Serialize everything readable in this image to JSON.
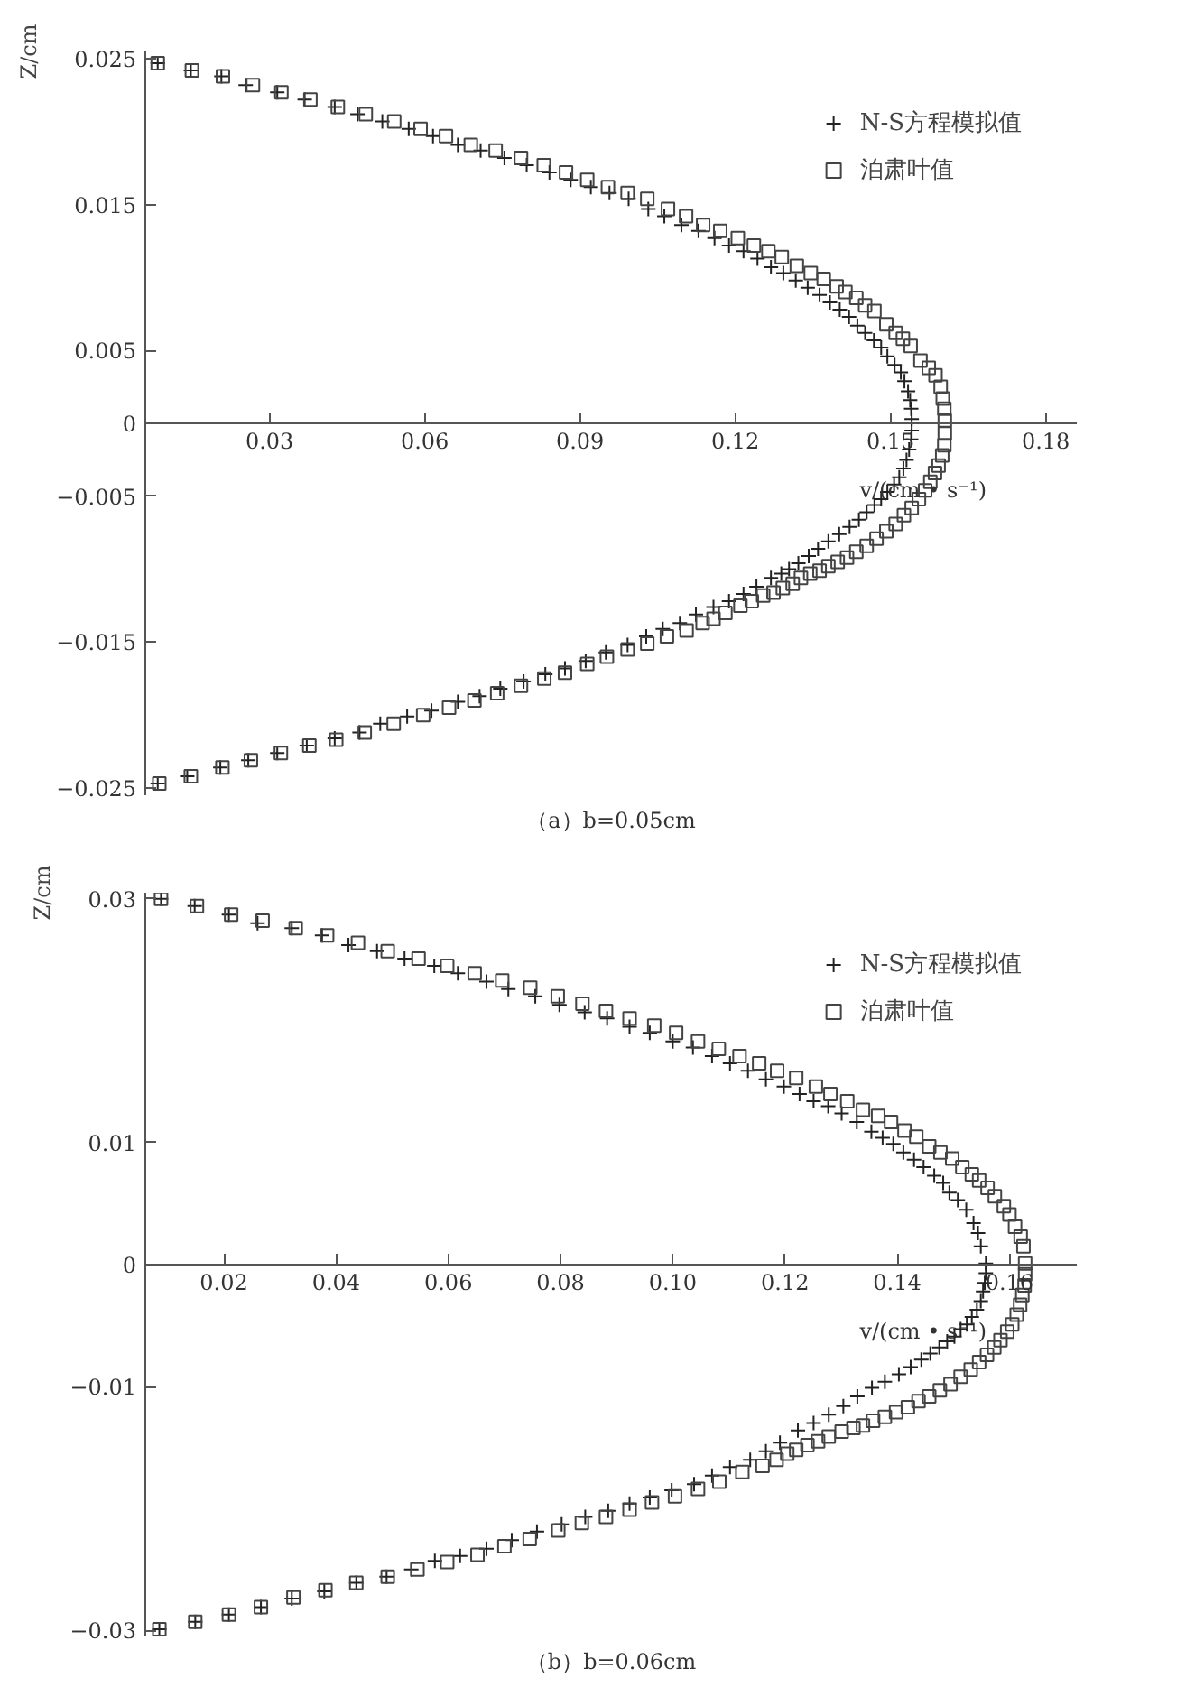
{
  "chart_data": [
    {
      "type": "scatter",
      "title": "（a）b=0.05cm",
      "xlabel": "v/(cm • s⁻¹)",
      "ylabel": "Z/cm",
      "xlim": [
        0.006,
        0.186
      ],
      "ylim": [
        -0.0255,
        0.0255
      ],
      "xticks": [
        0.03,
        0.06,
        0.09,
        0.12,
        0.15,
        0.18
      ],
      "yticks": [
        0.025,
        0.015,
        0.005,
        0,
        {
          "value": -0.005,
          "label": "−0.005"
        },
        {
          "value": -0.015,
          "label": "−0.015"
        },
        {
          "value": -0.025,
          "label": "−0.025"
        }
      ],
      "grid": false,
      "legend": "top right",
      "series": [
        {
          "name": "N-S方程模拟值",
          "color": "#222222",
          "marker": "cross",
          "x": [
            0.0084,
            0.0148,
            0.0207,
            0.0254,
            0.0315,
            0.0368,
            0.0426,
            0.047,
            0.0518,
            0.0569,
            0.0616,
            0.0664,
            0.0708,
            0.0754,
            0.0797,
            0.0841,
            0.0882,
            0.0921,
            0.0957,
            0.0994,
            0.1032,
            0.1063,
            0.1096,
            0.1129,
            0.116,
            0.1188,
            0.1216,
            0.1243,
            0.1269,
            0.1293,
            0.1317,
            0.134,
            0.1363,
            0.1383,
            0.1402,
            0.142,
            0.1436,
            0.1451,
            0.1468,
            0.1482,
            0.1494,
            0.1508,
            0.152,
            0.1527,
            0.1534,
            0.1538,
            0.154,
            0.1541,
            0.1541,
            0.154,
            0.1536,
            0.1531,
            0.1525,
            0.1517,
            0.1507,
            0.1494,
            0.1482,
            0.1469,
            0.1454,
            0.1439,
            0.1421,
            0.1401,
            0.138,
            0.136,
            0.1342,
            0.1322,
            0.1304,
            0.1289,
            0.1269,
            0.1241,
            0.1216,
            0.1188,
            0.1158,
            0.1124,
            0.1093,
            0.106,
            0.1028,
            0.0992,
            0.095,
            0.0911,
            0.0871,
            0.0833,
            0.0791,
            0.0746,
            0.0706,
            0.0664,
            0.0613,
            0.0566,
            0.0514,
            0.0474,
            0.0426,
            0.0372,
            0.0315,
            0.0259,
            0.0205,
            0.0141,
            0.0084
          ],
          "values": [
            0.0247,
            0.0242,
            0.0238,
            0.0232,
            0.0227,
            0.0222,
            0.0217,
            0.0212,
            0.0207,
            0.0202,
            0.0197,
            0.0191,
            0.0187,
            0.0182,
            0.0177,
            0.0172,
            0.0167,
            0.0162,
            0.0158,
            0.0154,
            0.0147,
            0.0142,
            0.0136,
            0.0132,
            0.0127,
            0.0122,
            0.0118,
            0.0113,
            0.0107,
            0.0103,
            0.0098,
            0.0093,
            0.0088,
            0.0083,
            0.0078,
            0.0073,
            0.0067,
            0.0062,
            0.0057,
            0.0052,
            0.0046,
            0.004,
            0.0035,
            0.0029,
            0.0022,
            0.0016,
            0.001,
            0.0003,
            -0.0005,
            -0.0011,
            -0.0018,
            -0.0025,
            -0.0031,
            -0.0037,
            -0.0042,
            -0.0047,
            -0.0052,
            -0.0056,
            -0.0061,
            -0.0066,
            -0.0071,
            -0.0076,
            -0.0081,
            -0.0086,
            -0.0091,
            -0.0096,
            -0.01,
            -0.0103,
            -0.0106,
            -0.0112,
            -0.0117,
            -0.0122,
            -0.0126,
            -0.0131,
            -0.0137,
            -0.0141,
            -0.0146,
            -0.0152,
            -0.0157,
            -0.0163,
            -0.0168,
            -0.0172,
            -0.0177,
            -0.0182,
            -0.0187,
            -0.0191,
            -0.0197,
            -0.0201,
            -0.0206,
            -0.0212,
            -0.0216,
            -0.0221,
            -0.0226,
            -0.0231,
            -0.0236,
            -0.0242,
            -0.0247
          ]
        },
        {
          "name": "泊肃叶值",
          "color": "#444444",
          "marker": "square",
          "x": [
            0.0084,
            0.015,
            0.021,
            0.0268,
            0.0323,
            0.0379,
            0.0432,
            0.0486,
            0.0541,
            0.0592,
            0.0641,
            0.0689,
            0.0737,
            0.0786,
            0.083,
            0.0873,
            0.0914,
            0.0954,
            0.0992,
            0.103,
            0.107,
            0.1105,
            0.1138,
            0.1171,
            0.1205,
            0.1236,
            0.1264,
            0.129,
            0.1319,
            0.1346,
            0.1371,
            0.1396,
            0.1413,
            0.1434,
            0.1451,
            0.1469,
            0.1492,
            0.151,
            0.1524,
            0.1539,
            0.1558,
            0.1574,
            0.1587,
            0.1597,
            0.1601,
            0.1604,
            0.1605,
            0.1605,
            0.1604,
            0.16,
            0.1593,
            0.1586,
            0.1577,
            0.1567,
            0.1555,
            0.1541,
            0.1526,
            0.151,
            0.1492,
            0.1473,
            0.1454,
            0.1434,
            0.1416,
            0.1398,
            0.138,
            0.1363,
            0.1345,
            0.1327,
            0.1311,
            0.1292,
            0.1274,
            0.1254,
            0.1232,
            0.121,
            0.1181,
            0.1158,
            0.1137,
            0.1106,
            0.1068,
            0.103,
            0.0992,
            0.0952,
            0.0914,
            0.0871,
            0.0831,
            0.0786,
            0.074,
            0.0696,
            0.0647,
            0.0597,
            0.054,
            0.0484,
            0.0429,
            0.0377,
            0.0322,
            0.0264,
            0.0209,
            0.0148,
            0.0087
          ],
          "values": [
            0.0247,
            0.0242,
            0.0238,
            0.0232,
            0.0227,
            0.0222,
            0.0217,
            0.0212,
            0.0207,
            0.0202,
            0.0197,
            0.0191,
            0.0187,
            0.0182,
            0.0177,
            0.0172,
            0.0167,
            0.0162,
            0.0158,
            0.0154,
            0.0147,
            0.0142,
            0.0136,
            0.0132,
            0.0127,
            0.0122,
            0.0118,
            0.0114,
            0.0108,
            0.0103,
            0.0099,
            0.0094,
            0.009,
            0.0086,
            0.0081,
            0.0077,
            0.0068,
            0.0062,
            0.0058,
            0.0053,
            0.0043,
            0.0038,
            0.0033,
            0.0025,
            0.0017,
            0.001,
            0.0002,
            -0.0007,
            -0.0015,
            -0.0022,
            -0.0029,
            -0.0034,
            -0.004,
            -0.0046,
            -0.0052,
            -0.0058,
            -0.0063,
            -0.0069,
            -0.0074,
            -0.0079,
            -0.0084,
            -0.0088,
            -0.0092,
            -0.0095,
            -0.0098,
            -0.0101,
            -0.0103,
            -0.0106,
            -0.011,
            -0.0113,
            -0.0116,
            -0.0118,
            -0.0122,
            -0.0125,
            -0.013,
            -0.0134,
            -0.0137,
            -0.0142,
            -0.0146,
            -0.0151,
            -0.0155,
            -0.016,
            -0.0165,
            -0.0171,
            -0.0175,
            -0.018,
            -0.0185,
            -0.019,
            -0.0195,
            -0.02,
            -0.0206,
            -0.0212,
            -0.0217,
            -0.0221,
            -0.0226,
            -0.0231,
            -0.0236,
            -0.0242,
            -0.0247
          ]
        }
      ]
    },
    {
      "type": "scatter",
      "title": "（b）b=0.06cm",
      "xlabel": "v/(cm • s⁻¹)",
      "ylabel": "Z/cm",
      "xlim": [
        0.006,
        0.172
      ],
      "ylim": [
        -0.0305,
        0.0305
      ],
      "xticks": [
        0.02,
        0.04,
        0.06,
        0.08,
        {
          "value": 0.1,
          "label": "0.10"
        },
        0.12,
        0.14,
        0.16
      ],
      "yticks": [
        0.03,
        0.01,
        0,
        {
          "value": -0.01,
          "label": "−0.01"
        },
        {
          "value": -0.03,
          "label": "−0.03"
        }
      ],
      "grid": false,
      "legend": "top right",
      "series": [
        {
          "name": "N-S方程模拟值",
          "color": "#222222",
          "marker": "cross",
          "x": [
            0.0088,
            0.0148,
            0.0209,
            0.026,
            0.0321,
            0.0375,
            0.0422,
            0.0473,
            0.0522,
            0.0575,
            0.0617,
            0.0668,
            0.0707,
            0.0755,
            0.0798,
            0.0843,
            0.0883,
            0.0923,
            0.0959,
            0.1,
            0.1036,
            0.107,
            0.1102,
            0.1134,
            0.1166,
            0.1198,
            0.1226,
            0.1251,
            0.1277,
            0.1301,
            0.1328,
            0.1354,
            0.1374,
            0.1393,
            0.1411,
            0.143,
            0.1447,
            0.1466,
            0.1482,
            0.1493,
            0.1508,
            0.1523,
            0.1536,
            0.1544,
            0.1549,
            0.1558,
            0.1558,
            0.1556,
            0.1553,
            0.1549,
            0.1542,
            0.1533,
            0.1524,
            0.1513,
            0.1502,
            0.1489,
            0.1475,
            0.1459,
            0.1443,
            0.1424,
            0.1403,
            0.1378,
            0.1355,
            0.1329,
            0.1304,
            0.1278,
            0.1251,
            0.1223,
            0.1191,
            0.1166,
            0.1138,
            0.1102,
            0.107,
            0.1038,
            0.0998,
            0.0959,
            0.0923,
            0.0885,
            0.0844,
            0.0802,
            0.0758,
            0.0713,
            0.0668,
            0.0621,
            0.0576,
            0.0534,
            0.049,
            0.0436,
            0.0379,
            0.0321,
            0.0266,
            0.0209,
            0.0149,
            0.0085
          ],
          "values": [
            0.03,
            0.0294,
            0.0287,
            0.028,
            0.0276,
            0.027,
            0.0262,
            0.0257,
            0.0251,
            0.0245,
            0.0239,
            0.0232,
            0.0226,
            0.022,
            0.0213,
            0.0207,
            0.0202,
            0.0195,
            0.019,
            0.0183,
            0.0178,
            0.0171,
            0.0165,
            0.0159,
            0.0152,
            0.0146,
            0.014,
            0.0134,
            0.013,
            0.0124,
            0.0117,
            0.0109,
            0.0104,
            0.0099,
            0.0092,
            0.0086,
            0.008,
            0.0073,
            0.0067,
            0.0059,
            0.0053,
            0.0045,
            0.0034,
            0.0026,
            0.0015,
            0.0001,
            -0.0007,
            -0.0015,
            -0.0022,
            -0.003,
            -0.0037,
            -0.0043,
            -0.0049,
            -0.0053,
            -0.0059,
            -0.0063,
            -0.0068,
            -0.0073,
            -0.0078,
            -0.0084,
            -0.009,
            -0.0096,
            -0.0101,
            -0.0108,
            -0.0116,
            -0.0123,
            -0.013,
            -0.0136,
            -0.0146,
            -0.0153,
            -0.016,
            -0.0166,
            -0.0173,
            -0.018,
            -0.0185,
            -0.0191,
            -0.0196,
            -0.0202,
            -0.0207,
            -0.0213,
            -0.0219,
            -0.0226,
            -0.0233,
            -0.0239,
            -0.0243,
            -0.025,
            -0.0256,
            -0.0261,
            -0.0268,
            -0.0274,
            -0.0281,
            -0.0287,
            -0.0293,
            -0.0299
          ]
        },
        {
          "name": "泊肃叶值",
          "color": "#444444",
          "marker": "square",
          "x": [
            0.0088,
            0.0152,
            0.0213,
            0.0269,
            0.0328,
            0.0384,
            0.0439,
            0.0492,
            0.0547,
            0.0598,
            0.0647,
            0.0696,
            0.0746,
            0.0795,
            0.0839,
            0.0881,
            0.0923,
            0.0967,
            0.1006,
            0.1045,
            0.1082,
            0.1119,
            0.1154,
            0.1186,
            0.122,
            0.1255,
            0.1281,
            0.1311,
            0.1339,
            0.1366,
            0.1389,
            0.1413,
            0.1434,
            0.1457,
            0.1477,
            0.1498,
            0.1516,
            0.1533,
            0.1546,
            0.1561,
            0.1574,
            0.159,
            0.16,
            0.161,
            0.162,
            0.1625,
            0.1628,
            0.1628,
            0.1627,
            0.1623,
            0.1619,
            0.1613,
            0.1605,
            0.1596,
            0.1584,
            0.1573,
            0.156,
            0.1546,
            0.1531,
            0.1513,
            0.1495,
            0.1476,
            0.1457,
            0.1438,
            0.1419,
            0.1398,
            0.1378,
            0.1357,
            0.1339,
            0.1322,
            0.1301,
            0.1278,
            0.1259,
            0.124,
            0.122,
            0.1204,
            0.1185,
            0.116,
            0.1124,
            0.1083,
            0.1045,
            0.1004,
            0.0963,
            0.0923,
            0.0881,
            0.0838,
            0.0796,
            0.0745,
            0.07,
            0.0652,
            0.0598,
            0.0545,
            0.0492,
            0.0436,
            0.0381,
            0.0324,
            0.0266,
            0.0209,
            0.0149,
            0.0085
          ],
          "values": [
            0.03,
            0.0294,
            0.0287,
            0.0282,
            0.0276,
            0.027,
            0.0264,
            0.0257,
            0.0251,
            0.0245,
            0.0239,
            0.0233,
            0.0227,
            0.022,
            0.0214,
            0.0208,
            0.0202,
            0.0196,
            0.019,
            0.0183,
            0.0177,
            0.0171,
            0.0165,
            0.0159,
            0.0153,
            0.0146,
            0.014,
            0.0134,
            0.0127,
            0.0122,
            0.0117,
            0.011,
            0.0105,
            0.0097,
            0.0092,
            0.0087,
            0.008,
            0.0074,
            0.0069,
            0.0063,
            0.0056,
            0.0048,
            0.0041,
            0.0031,
            0.0023,
            0.0015,
            0.0001,
            -0.0008,
            -0.0017,
            -0.0025,
            -0.0033,
            -0.0041,
            -0.0049,
            -0.0055,
            -0.0062,
            -0.0068,
            -0.0074,
            -0.008,
            -0.0086,
            -0.0092,
            -0.0098,
            -0.0103,
            -0.0108,
            -0.0112,
            -0.0117,
            -0.0121,
            -0.0125,
            -0.0128,
            -0.0132,
            -0.0134,
            -0.0137,
            -0.0141,
            -0.0145,
            -0.0148,
            -0.0152,
            -0.0155,
            -0.016,
            -0.0165,
            -0.017,
            -0.0178,
            -0.0184,
            -0.019,
            -0.0195,
            -0.0201,
            -0.0207,
            -0.0212,
            -0.0218,
            -0.0225,
            -0.0231,
            -0.0238,
            -0.0244,
            -0.025,
            -0.0256,
            -0.0261,
            -0.0267,
            -0.0273,
            -0.0281,
            -0.0287,
            -0.0293,
            -0.0299
          ]
        }
      ]
    }
  ]
}
